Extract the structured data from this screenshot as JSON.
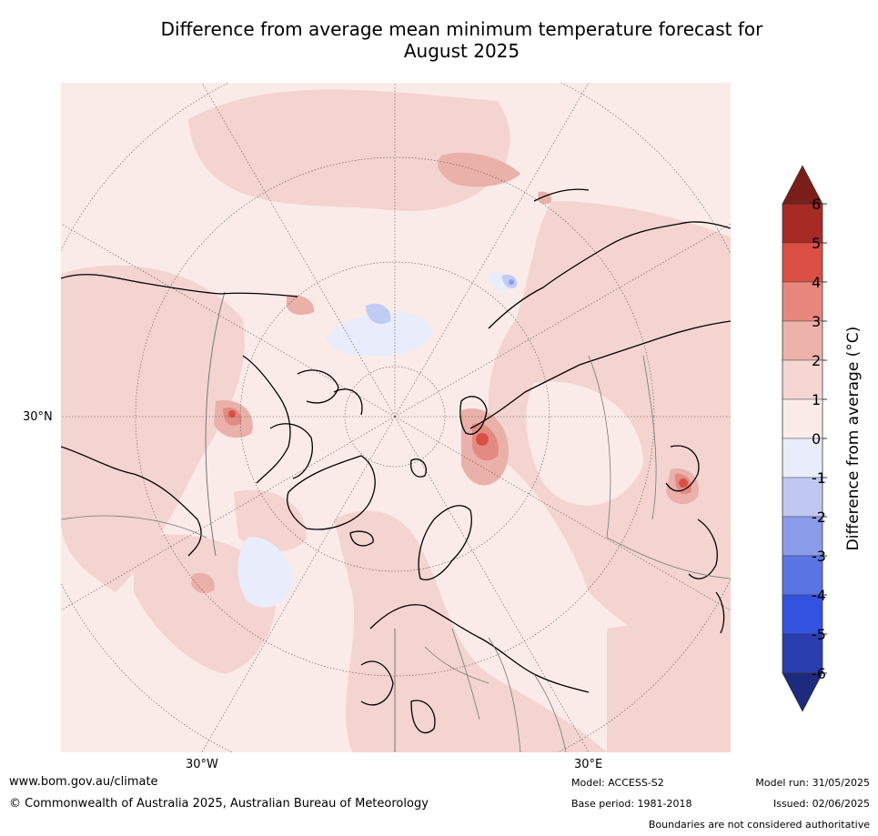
{
  "title_line1": "Difference from average mean minimum temperature forecast for",
  "title_line2": "August 2025",
  "map": {
    "lat_label": "30°N",
    "lon_labels": {
      "west": "30°W",
      "east": "30°E"
    },
    "colors": {
      "ocean_light": "#fbebe8",
      "land_warm": "#f4d4d0",
      "warm2": "#eab0aa",
      "warm3": "#e38a82",
      "warm4": "#d94f45",
      "cool": "#e8ecfb",
      "cool2": "#c2ccf2",
      "cool3": "#8b9ce8",
      "coast": "#000000",
      "border": "#777777"
    }
  },
  "colorbar": {
    "label": "Difference from average (°C)",
    "ticks": [
      "6",
      "5",
      "4",
      "3",
      "2",
      "1",
      "0",
      "-1",
      "-2",
      "-3",
      "-4",
      "-5",
      "-6"
    ],
    "colors": [
      "#a82a24",
      "#db4f45",
      "#e8877e",
      "#edb2aa",
      "#f5d6d2",
      "#fbece9",
      "#e9ecfb",
      "#c0c8f2",
      "#8a9bea",
      "#5b74e4",
      "#3352e0",
      "#2a3eb0"
    ],
    "extend_top_color": "#7a1e1a",
    "extend_bottom_color": "#1e2a7e"
  },
  "footer": {
    "website": "www.bom.gov.au/climate",
    "copyright": "© Commonwealth of Australia 2025, Australian Bureau of Meteorology",
    "model": "Model: ACCESS-S2",
    "base_period": "Base period: 1981-2018",
    "model_run": "Model run: 31/05/2025",
    "issued": "Issued: 02/06/2025",
    "disclaimer": "Boundaries are not considered authoritative"
  }
}
